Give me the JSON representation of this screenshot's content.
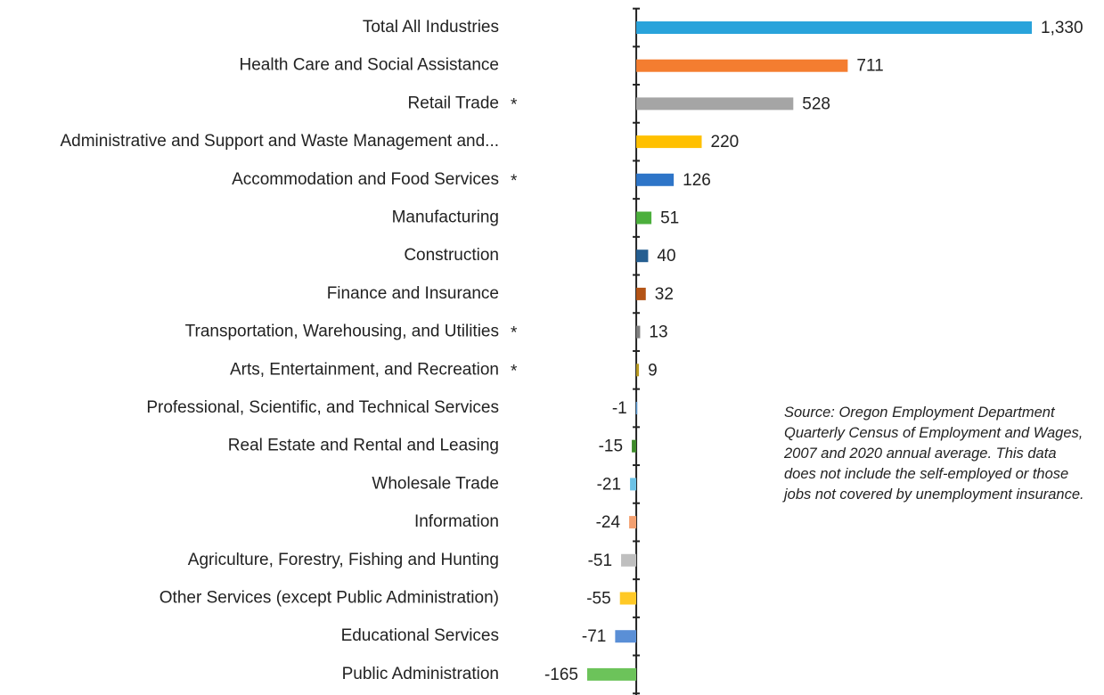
{
  "chart_data": {
    "type": "barh",
    "categories": [
      "Total All Industries",
      "Health Care and Social Assistance",
      "Retail Trade",
      "Administrative and Support and Waste Management and...",
      "Accommodation and Food Services",
      "Manufacturing",
      "Construction",
      "Finance and Insurance",
      "Transportation, Warehousing, and Utilities",
      "Arts, Entertainment, and Recreation",
      "Professional, Scientific, and Technical Services",
      "Real Estate and Rental and Leasing",
      "Wholesale Trade",
      "Information",
      "Agriculture, Forestry, Fishing and Hunting",
      "Other Services (except Public Administration)",
      "Educational Services",
      "Public Administration"
    ],
    "category_notes": [
      null,
      null,
      "*",
      null,
      "*",
      null,
      null,
      null,
      "*",
      "*",
      null,
      null,
      null,
      null,
      null,
      null,
      null,
      null
    ],
    "values": [
      1330,
      711,
      528,
      220,
      126,
      51,
      40,
      32,
      13,
      9,
      -1,
      -15,
      -21,
      -24,
      -51,
      -55,
      -71,
      -165
    ],
    "value_labels": [
      "1,330",
      "711",
      "528",
      "220",
      "126",
      "51",
      "40",
      "32",
      "13",
      "9",
      "-1",
      "-15",
      "-21",
      "-24",
      "-51",
      "-55",
      "-71",
      "-165"
    ],
    "colors": [
      "#29a3db",
      "#f47d30",
      "#a5a5a5",
      "#ffc000",
      "#2e75c8",
      "#4caf3c",
      "#255e91",
      "#b45416",
      "#7f7f7f",
      "#b89a20",
      "#5b9bd5",
      "#3e8a2a",
      "#6cc2e6",
      "#f4a070",
      "#bfbfbf",
      "#ffc926",
      "#5a8fd6",
      "#6cc35a"
    ],
    "xlim": [
      -165,
      1330
    ],
    "annotation": "Source: Oregon Employment Department Quarterly Census of Employment and Wages, 2007 and 2020 annual average. This data does not include the self-employed or those jobs not covered by unemployment insurance."
  }
}
